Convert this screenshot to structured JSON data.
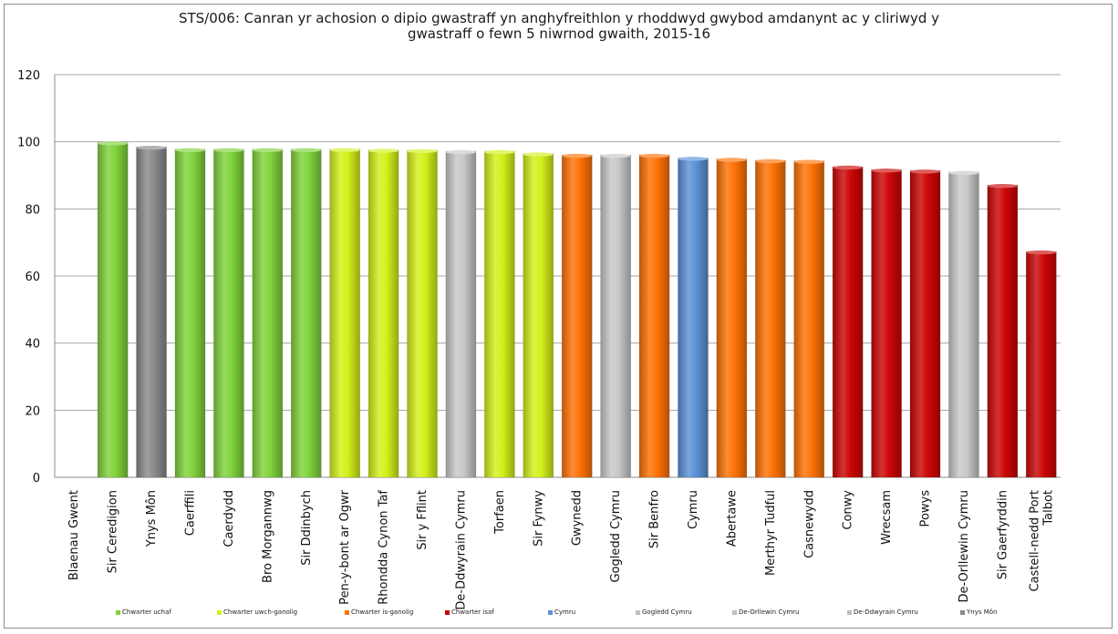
{
  "chart_data": {
    "type": "bar",
    "title_line1": "STS/006: Canran yr achosion o dipio gwastraff yn anghyfreithlon y rhoddwyd gwybod amdanynt ac y cliriwyd y",
    "title_line2": "gwastraff o fewn 5 niwrnod gwaith, 2015-16",
    "ylim": [
      0,
      120
    ],
    "yticks": [
      "0",
      "20",
      "40",
      "60",
      "80",
      "100",
      "120"
    ],
    "grid": true,
    "legend_position": "bottom",
    "categories": [
      "Blaenau Gwent",
      "Sir Ceredigion",
      "Ynys Môn",
      "Caerffili",
      "Caerdydd",
      "Bro Morgannwg",
      "Sir Ddinbych",
      "Pen-y-bont ar Ogwr",
      "Rhondda Cynon Taf",
      "Sir y Fflint",
      "De-Ddwyrain Cymru",
      "Torfaen",
      "Sir Fynwy",
      "Gwynedd",
      "Gogledd Cymru",
      "Sir Benfro",
      "Cymru",
      "Abertawe",
      "Merthyr Tudful",
      "Casnewydd",
      "Conwy",
      "Wrecsam",
      "Powys",
      "De-Orllewin Cymru",
      "Sir Gaerfyrddin",
      [
        "Castell-nedd Port",
        "Talbot"
      ]
    ],
    "values": [
      0,
      99.8,
      98.5,
      97.8,
      97.8,
      97.8,
      97.8,
      97.8,
      97.6,
      97.5,
      97.2,
      97.2,
      96.5,
      96.1,
      96.1,
      96.1,
      95.2,
      94.9,
      94.5,
      94.3,
      92.6,
      91.7,
      91.4,
      91.0,
      87.1,
      67.3
    ],
    "groups": [
      "upper",
      "upper",
      "ynys",
      "upper",
      "upper",
      "upper",
      "upper",
      "uppermid",
      "uppermid",
      "uppermid",
      "region",
      "uppermid",
      "uppermid",
      "lowermid",
      "region",
      "lowermid",
      "wales",
      "lowermid",
      "lowermid",
      "lowermid",
      "lower",
      "lower",
      "lower",
      "region",
      "lower",
      "lower"
    ],
    "colors": {
      "upper": "#80d33c",
      "uppermid": "#d4f019",
      "lowermid": "#ff7206",
      "lower": "#cc0606",
      "wales": "#5b91d6",
      "region": "#c8c8c8",
      "ynys": "#8a8a8a"
    },
    "legend": [
      {
        "label": "Chwarter uchaf",
        "color": "#80d33c"
      },
      {
        "label": "Chwarter uwch-ganolig",
        "color": "#d4f019"
      },
      {
        "label": "Chwarter is-ganolig",
        "color": "#ff7206"
      },
      {
        "label": "Chwarter isaf",
        "color": "#cc0606"
      },
      {
        "label": "Cymru",
        "color": "#5b91d6"
      },
      {
        "label": "Gogledd Cymru",
        "color": "#bfbfbf"
      },
      {
        "label": "De-Orllewin Cymru",
        "color": "#bfbfbf"
      },
      {
        "label": "De-Ddwyrain Cymru",
        "color": "#bfbfbf"
      },
      {
        "label": "Ynys Môn",
        "color": "#8a8a8a"
      }
    ]
  }
}
